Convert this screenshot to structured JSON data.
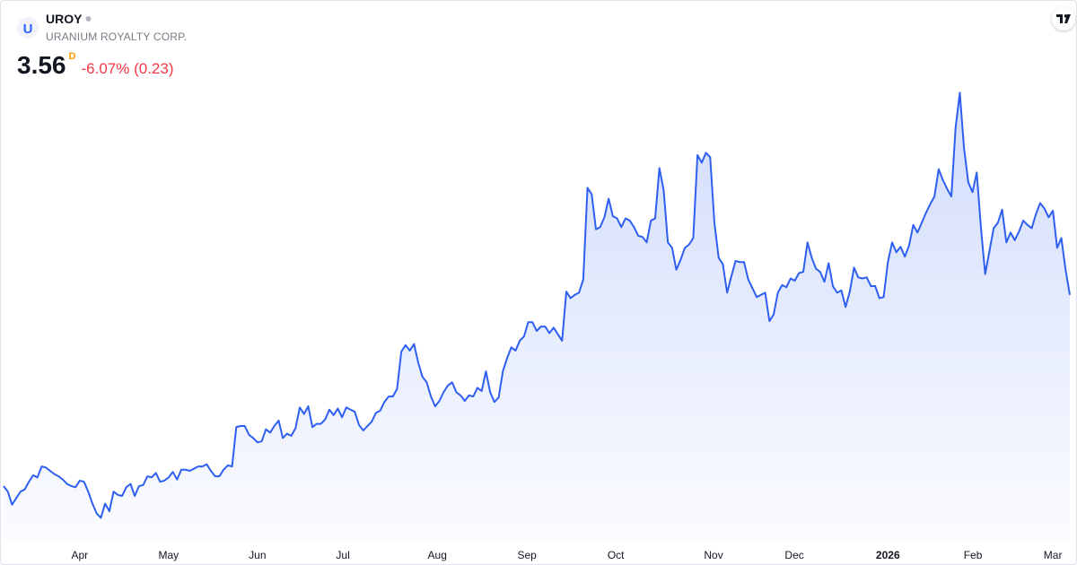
{
  "logo": "U",
  "header": {
    "symbol": "UROY",
    "name": "URANIUM ROYALTY CORP.",
    "price": "3.56",
    "flag": "D",
    "change": "-6.07% (0.23)"
  },
  "chart_data": {
    "type": "area",
    "color": "#2e5ff0",
    "xlim": [
      0,
      252
    ],
    "ylim": [
      1.08,
      6.25
    ],
    "xticks": [
      {
        "value": 18,
        "label": "Apr"
      },
      {
        "value": 39,
        "label": "May"
      },
      {
        "value": 60,
        "label": "Jun"
      },
      {
        "value": 80.2,
        "label": "Jul"
      },
      {
        "value": 102.5,
        "label": "Aug"
      },
      {
        "value": 123.7,
        "label": "Sep"
      },
      {
        "value": 144.7,
        "label": "Oct"
      },
      {
        "value": 167.8,
        "label": "Nov"
      },
      {
        "value": 186.9,
        "label": "Dec"
      },
      {
        "value": 209,
        "label": "2026"
      },
      {
        "value": 229.1,
        "label": "Feb"
      },
      {
        "value": 248,
        "label": "Mar"
      }
    ],
    "values": [
      1.81,
      1.76,
      1.64,
      1.7,
      1.76,
      1.78,
      1.85,
      1.91,
      1.89,
      1.99,
      1.98,
      1.95,
      1.92,
      1.9,
      1.87,
      1.83,
      1.81,
      1.8,
      1.86,
      1.85,
      1.76,
      1.65,
      1.56,
      1.52,
      1.65,
      1.58,
      1.76,
      1.73,
      1.72,
      1.8,
      1.83,
      1.72,
      1.81,
      1.82,
      1.9,
      1.89,
      1.93,
      1.85,
      1.86,
      1.89,
      1.94,
      1.87,
      1.96,
      1.96,
      1.95,
      1.97,
      1.99,
      1.99,
      2.01,
      1.95,
      1.9,
      1.9,
      1.96,
      2.0,
      1.99,
      2.35,
      2.36,
      2.36,
      2.28,
      2.25,
      2.21,
      2.22,
      2.33,
      2.3,
      2.36,
      2.41,
      2.25,
      2.29,
      2.27,
      2.34,
      2.53,
      2.47,
      2.54,
      2.35,
      2.38,
      2.38,
      2.42,
      2.51,
      2.46,
      2.52,
      2.44,
      2.53,
      2.51,
      2.49,
      2.37,
      2.32,
      2.36,
      2.4,
      2.48,
      2.5,
      2.58,
      2.63,
      2.63,
      2.7,
      3.04,
      3.1,
      3.05,
      3.11,
      2.94,
      2.81,
      2.76,
      2.63,
      2.54,
      2.59,
      2.67,
      2.73,
      2.76,
      2.67,
      2.64,
      2.59,
      2.64,
      2.63,
      2.71,
      2.68,
      2.86,
      2.67,
      2.58,
      2.62,
      2.86,
      2.98,
      3.08,
      3.05,
      3.14,
      3.18,
      3.31,
      3.31,
      3.23,
      3.27,
      3.27,
      3.21,
      3.26,
      3.2,
      3.14,
      3.59,
      3.53,
      3.56,
      3.58,
      3.7,
      4.54,
      4.48,
      4.16,
      4.18,
      4.27,
      4.44,
      4.28,
      4.26,
      4.18,
      4.26,
      4.24,
      4.18,
      4.1,
      4.09,
      4.04,
      4.24,
      4.26,
      4.72,
      4.52,
      4.04,
      3.99,
      3.79,
      3.88,
      3.99,
      4.02,
      4.08,
      4.84,
      4.77,
      4.86,
      4.82,
      4.22,
      3.9,
      3.84,
      3.58,
      3.73,
      3.87,
      3.86,
      3.86,
      3.7,
      3.62,
      3.54,
      3.56,
      3.58,
      3.32,
      3.38,
      3.58,
      3.65,
      3.63,
      3.71,
      3.69,
      3.76,
      3.77,
      4.04,
      3.9,
      3.8,
      3.77,
      3.68,
      3.85,
      3.64,
      3.58,
      3.6,
      3.45,
      3.59,
      3.81,
      3.72,
      3.71,
      3.72,
      3.64,
      3.64,
      3.53,
      3.54,
      3.86,
      4.04,
      3.95,
      4.0,
      3.91,
      4.01,
      4.2,
      4.13,
      4.22,
      4.31,
      4.39,
      4.46,
      4.71,
      4.61,
      4.53,
      4.46,
      5.09,
      5.41,
      4.9,
      4.59,
      4.5,
      4.68,
      4.17,
      3.75,
      3.96,
      4.17,
      4.22,
      4.34,
      4.04,
      4.13,
      4.06,
      4.14,
      4.24,
      4.2,
      4.17,
      4.3,
      4.4,
      4.35,
      4.27,
      4.33,
      3.99,
      4.08,
      3.79,
      3.56
    ]
  }
}
